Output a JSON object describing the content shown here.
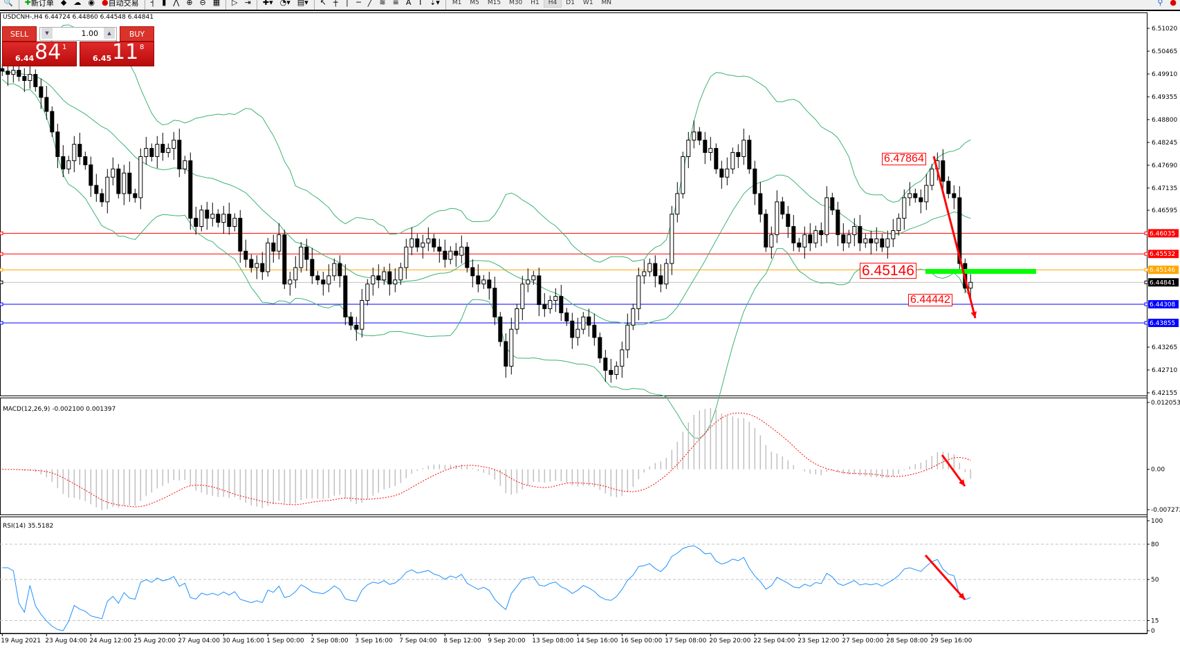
{
  "toolbar": {
    "new_order": "新订单",
    "auto_trading": "自动交易",
    "timeframes": [
      "M1",
      "M5",
      "M15",
      "M30",
      "H1",
      "H4",
      "D1",
      "W1",
      "MN"
    ],
    "active_timeframe": "H4"
  },
  "chart": {
    "title": "USDCNH-,H4  6.44724 6.44860 6.44548 6.44841",
    "price_ticks": [
      "6.51020",
      "6.50465",
      "6.49910",
      "6.49355",
      "6.48800",
      "6.48245",
      "6.47690",
      "6.47135",
      "6.46595",
      "6.43265",
      "6.42710",
      "6.42155"
    ],
    "price_range": [
      6.42155,
      6.5102
    ],
    "closes": [
      6.4998,
      6.499,
      6.5,
      6.4985,
      6.4975,
      6.499,
      6.496,
      6.4934,
      6.49,
      6.485,
      6.479,
      6.476,
      6.478,
      6.482,
      6.479,
      6.477,
      6.472,
      6.47,
      6.468,
      6.474,
      6.476,
      6.47,
      6.475,
      6.47,
      6.469,
      6.479,
      6.481,
      6.479,
      6.482,
      6.48,
      6.481,
      6.483,
      6.476,
      6.478,
      6.464,
      6.462,
      6.466,
      6.464,
      6.465,
      6.463,
      6.465,
      6.462,
      6.464,
      6.456,
      6.454,
      6.452,
      6.453,
      6.451,
      6.458,
      6.456,
      6.46,
      6.448,
      6.449,
      6.452,
      6.457,
      6.454,
      6.45,
      6.449,
      6.448,
      6.45,
      6.453,
      6.45,
      6.44,
      6.438,
      6.437,
      6.444,
      6.448,
      6.45,
      6.449,
      6.451,
      6.448,
      6.449,
      6.452,
      6.457,
      6.459,
      6.457,
      6.458,
      6.459,
      6.457,
      6.456,
      6.454,
      6.456,
      6.455,
      6.457,
      6.452,
      6.45,
      6.448,
      6.449,
      6.447,
      6.44,
      6.434,
      6.428,
      6.437,
      6.442,
      6.448,
      6.449,
      6.45,
      6.443,
      6.442,
      6.444,
      6.445,
      6.441,
      6.439,
      6.435,
      6.437,
      6.44,
      6.438,
      6.435,
      6.43,
      6.427,
      6.426,
      6.428,
      6.432,
      6.438,
      6.442,
      6.45,
      6.451,
      6.453,
      6.45,
      6.448,
      6.453,
      6.465,
      6.47,
      6.479,
      6.483,
      6.485,
      6.483,
      6.48,
      6.481,
      6.476,
      6.474,
      6.476,
      6.48,
      6.479,
      6.483,
      6.476,
      6.47,
      6.465,
      6.457,
      6.46,
      6.468,
      6.465,
      6.462,
      6.458,
      6.457,
      6.46,
      6.458,
      6.461,
      6.46,
      6.469,
      6.466,
      6.46,
      6.458,
      6.46,
      6.462,
      6.458,
      6.459,
      6.458,
      6.459,
      6.457,
      6.459,
      6.461,
      6.464,
      6.469,
      6.47,
      6.469,
      6.468,
      6.472,
      6.476,
      6.478,
      6.473,
      6.47,
      6.469,
      6.453,
      6.447,
      6.44841
    ],
    "hlines": [
      {
        "price": 6.46035,
        "label": "6.46035",
        "color": "#ff0000"
      },
      {
        "price": 6.45532,
        "label": "6.45532",
        "color": "#ff0000"
      },
      {
        "price": 6.45146,
        "label": "6.45146",
        "color": "#ffa500"
      },
      {
        "price": 6.44841,
        "label": "6.44841",
        "color": "#000000",
        "line": "#c0c0c0"
      },
      {
        "price": 6.44308,
        "label": "6.44308",
        "color": "#0000ff"
      },
      {
        "price": 6.43855,
        "label": "6.43855",
        "color": "#0000ff"
      }
    ],
    "annotations": {
      "high": "6.47864",
      "level": "6.45146",
      "low": "6.44442"
    },
    "dates": [
      "19 Aug 2021",
      "23 Aug 04:00",
      "24 Aug 12:00",
      "25 Aug 20:00",
      "27 Aug 04:00",
      "30 Aug 16:00",
      "1 Sep 00:00",
      "2 Sep 08:00",
      "3 Sep 16:00",
      "7 Sep 04:00",
      "8 Sep 12:00",
      "9 Sep 20:00",
      "13 Sep 08:00",
      "14 Sep 16:00",
      "16 Sep 00:00",
      "17 Sep 08:00",
      "20 Sep 20:00",
      "22 Sep 04:00",
      "23 Sep 12:00",
      "27 Sep 00:00",
      "28 Sep 08:00",
      "29 Sep 16:00"
    ]
  },
  "one_click": {
    "sell": "SELL",
    "buy": "BUY",
    "lot": "1.00",
    "bid_small": "6.44",
    "bid_big": "84",
    "bid_sup": "1",
    "ask_small": "6.45",
    "ask_big": "11",
    "ask_sup": "8"
  },
  "macd": {
    "title": "MACD(12,26,9) -0.002100 0.001397",
    "ticks": [
      "0.012053",
      "0.00",
      "-0.007272"
    ],
    "range": [
      -0.007272,
      0.012053
    ]
  },
  "rsi": {
    "title": "RSI(14) 35.5182",
    "ticks": [
      "100",
      "80",
      "50",
      "15",
      "0"
    ],
    "levels": [
      80,
      50,
      15
    ]
  },
  "colors": {
    "bands": "#3cb371",
    "signal": "#ff0000",
    "hist": "#c0c0c0",
    "rsi": "#1e90ff",
    "arrow": "#ff0000",
    "zone": "#00ff00"
  }
}
